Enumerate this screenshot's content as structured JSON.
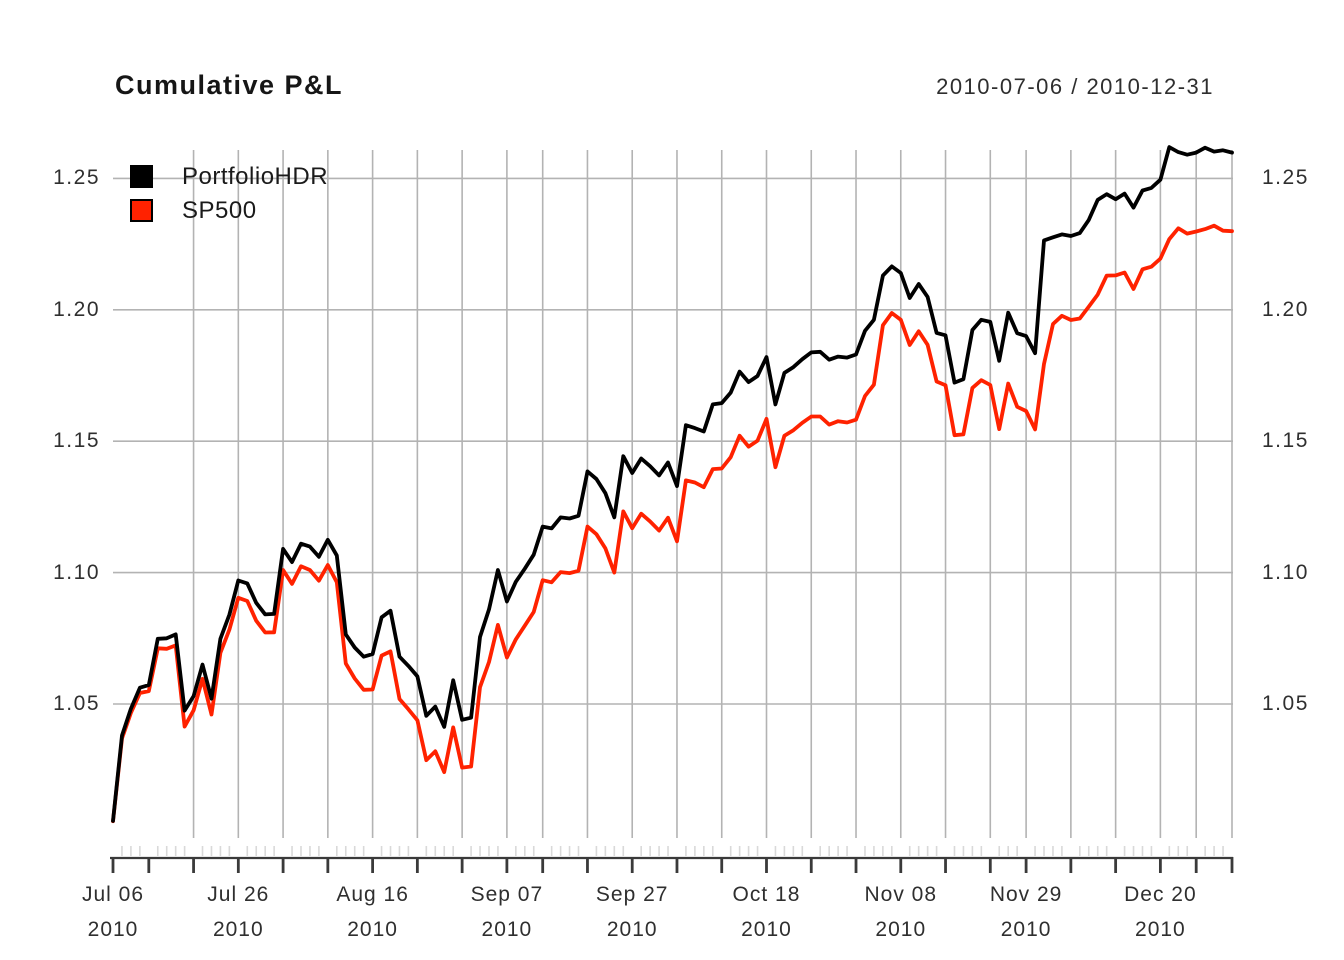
{
  "header": {
    "title": "Cumulative P&L",
    "date_range": "2010-07-06 / 2010-12-31"
  },
  "legend": {
    "items": [
      {
        "label": "PortfolioHDR",
        "color": "#000000"
      },
      {
        "label": "SP500",
        "color": "#ff2200"
      }
    ]
  },
  "axes": {
    "y_ticks": [
      {
        "value": 1.05,
        "label": "1.05"
      },
      {
        "value": 1.1,
        "label": "1.10"
      },
      {
        "value": 1.15,
        "label": "1.15"
      },
      {
        "value": 1.2,
        "label": "1.20"
      },
      {
        "value": 1.25,
        "label": "1.25"
      }
    ],
    "x_ticks": [
      {
        "index": 0,
        "line1": "Jul 06",
        "line2": "2010"
      },
      {
        "index": 14,
        "line1": "Jul 26",
        "line2": "2010"
      },
      {
        "index": 29,
        "line1": "Aug 16",
        "line2": "2010"
      },
      {
        "index": 44,
        "line1": "Sep 07",
        "line2": "2010"
      },
      {
        "index": 58,
        "line1": "Sep 27",
        "line2": "2010"
      },
      {
        "index": 73,
        "line1": "Oct 18",
        "line2": "2010"
      },
      {
        "index": 88,
        "line1": "Nov 08",
        "line2": "2010"
      },
      {
        "index": 102,
        "line1": "Nov 29",
        "line2": "2010"
      },
      {
        "index": 117,
        "line1": "Dec 20",
        "line2": "2010"
      }
    ]
  },
  "chart_data": {
    "type": "line",
    "title": "Cumulative P&L",
    "x_range_label": "2010-07-06 / 2010-12-31",
    "ylim": [
      1.0,
      1.265
    ],
    "grid": true,
    "legend_position": "top-left",
    "colors": {
      "grid": "#b3b3b3",
      "axis": "#3a3a3a",
      "minor_tick": "#d9d9d9"
    },
    "week_start_indices": [
      9,
      14,
      19,
      24,
      29,
      34,
      39,
      44,
      48,
      53,
      58,
      63,
      68,
      73,
      78,
      83,
      88,
      93,
      98,
      102,
      107,
      112,
      117,
      121,
      125
    ],
    "major_tick_indices": [
      0,
      4,
      9,
      14,
      19,
      24,
      29,
      34,
      39,
      44,
      48,
      53,
      58,
      63,
      68,
      73,
      78,
      83,
      88,
      93,
      98,
      102,
      107,
      112,
      117,
      121,
      125
    ],
    "dates": [
      "2010-07-06",
      "2010-07-07",
      "2010-07-08",
      "2010-07-09",
      "2010-07-12",
      "2010-07-13",
      "2010-07-14",
      "2010-07-15",
      "2010-07-16",
      "2010-07-19",
      "2010-07-20",
      "2010-07-21",
      "2010-07-22",
      "2010-07-23",
      "2010-07-26",
      "2010-07-27",
      "2010-07-28",
      "2010-07-29",
      "2010-07-30",
      "2010-08-02",
      "2010-08-03",
      "2010-08-04",
      "2010-08-05",
      "2010-08-06",
      "2010-08-09",
      "2010-08-10",
      "2010-08-11",
      "2010-08-12",
      "2010-08-13",
      "2010-08-16",
      "2010-08-17",
      "2010-08-18",
      "2010-08-19",
      "2010-08-20",
      "2010-08-23",
      "2010-08-24",
      "2010-08-25",
      "2010-08-26",
      "2010-08-27",
      "2010-08-30",
      "2010-08-31",
      "2010-09-01",
      "2010-09-02",
      "2010-09-03",
      "2010-09-07",
      "2010-09-08",
      "2010-09-09",
      "2010-09-10",
      "2010-09-13",
      "2010-09-14",
      "2010-09-15",
      "2010-09-16",
      "2010-09-17",
      "2010-09-20",
      "2010-09-21",
      "2010-09-22",
      "2010-09-23",
      "2010-09-24",
      "2010-09-27",
      "2010-09-28",
      "2010-09-29",
      "2010-09-30",
      "2010-10-01",
      "2010-10-04",
      "2010-10-05",
      "2010-10-06",
      "2010-10-07",
      "2010-10-08",
      "2010-10-11",
      "2010-10-12",
      "2010-10-13",
      "2010-10-14",
      "2010-10-15",
      "2010-10-18",
      "2010-10-19",
      "2010-10-20",
      "2010-10-21",
      "2010-10-22",
      "2010-10-25",
      "2010-10-26",
      "2010-10-27",
      "2010-10-28",
      "2010-10-29",
      "2010-11-01",
      "2010-11-02",
      "2010-11-03",
      "2010-11-04",
      "2010-11-05",
      "2010-11-08",
      "2010-11-09",
      "2010-11-10",
      "2010-11-11",
      "2010-11-12",
      "2010-11-15",
      "2010-11-16",
      "2010-11-17",
      "2010-11-18",
      "2010-11-19",
      "2010-11-22",
      "2010-11-23",
      "2010-11-24",
      "2010-11-26",
      "2010-11-29",
      "2010-11-30",
      "2010-12-01",
      "2010-12-02",
      "2010-12-03",
      "2010-12-06",
      "2010-12-07",
      "2010-12-08",
      "2010-12-09",
      "2010-12-10",
      "2010-12-13",
      "2010-12-14",
      "2010-12-15",
      "2010-12-16",
      "2010-12-17",
      "2010-12-20",
      "2010-12-21",
      "2010-12-22",
      "2010-12-23",
      "2010-12-27",
      "2010-12-28",
      "2010-12-29",
      "2010-12-30",
      "2010-12-31"
    ],
    "series": [
      {
        "name": "PortfolioHDR",
        "color": "#000000",
        "values": [
          1.0055,
          1.038,
          1.0482,
          1.0562,
          1.0572,
          1.0748,
          1.075,
          1.0765,
          1.0475,
          1.053,
          1.065,
          1.052,
          1.0748,
          1.084,
          1.097,
          1.0959,
          1.0885,
          1.0841,
          1.0843,
          1.109,
          1.104,
          1.111,
          1.1099,
          1.106,
          1.1125,
          1.1065,
          1.0765,
          1.0715,
          1.068,
          1.069,
          1.083,
          1.0855,
          1.068,
          1.0645,
          1.0605,
          1.0455,
          1.049,
          1.0413,
          1.059,
          1.044,
          1.0448,
          1.0755,
          1.086,
          1.101,
          1.089,
          1.0965,
          1.1015,
          1.1068,
          1.1175,
          1.1168,
          1.121,
          1.1206,
          1.1216,
          1.1385,
          1.1356,
          1.1302,
          1.121,
          1.1443,
          1.1379,
          1.1434,
          1.1405,
          1.137,
          1.1419,
          1.1329,
          1.1561,
          1.155,
          1.1537,
          1.164,
          1.1645,
          1.1685,
          1.1765,
          1.1725,
          1.1748,
          1.182,
          1.164,
          1.176,
          1.1782,
          1.1812,
          1.1838,
          1.184,
          1.181,
          1.1822,
          1.1818,
          1.183,
          1.192,
          1.1962,
          1.213,
          1.2165,
          1.214,
          1.2045,
          1.2098,
          1.2049,
          1.1912,
          1.1903,
          1.1723,
          1.1736,
          1.1923,
          1.1962,
          1.1954,
          1.1806,
          1.1989,
          1.1911,
          1.19,
          1.1835,
          1.2264,
          1.2276,
          1.2287,
          1.2281,
          1.2292,
          1.2342,
          1.2418,
          1.244,
          1.2421,
          1.2442,
          1.2389,
          1.2454,
          1.2464,
          1.2495,
          1.2619,
          1.26,
          1.259,
          1.2598,
          1.2617,
          1.2602,
          1.2607,
          1.2598
        ]
      },
      {
        "name": "SP500",
        "color": "#ff2200",
        "values": [
          1.0054,
          1.0369,
          1.0466,
          1.0542,
          1.0549,
          1.0712,
          1.071,
          1.0723,
          1.0414,
          1.0476,
          1.0596,
          1.046,
          1.0695,
          1.0783,
          1.0904,
          1.0892,
          1.0817,
          1.0772,
          1.0773,
          1.101,
          1.0957,
          1.1024,
          1.101,
          1.0969,
          1.1029,
          1.0963,
          1.0654,
          1.0597,
          1.0554,
          1.0555,
          1.0684,
          1.07,
          1.0519,
          1.048,
          1.0438,
          1.0286,
          1.032,
          1.0241,
          1.0411,
          1.0258,
          1.0262,
          1.0564,
          1.066,
          1.0801,
          1.0677,
          1.0746,
          1.0798,
          1.085,
          1.0971,
          1.0963,
          1.1002,
          1.0998,
          1.1007,
          1.1175,
          1.1146,
          1.1092,
          1.1,
          1.1233,
          1.1169,
          1.1224,
          1.1195,
          1.116,
          1.1209,
          1.1119,
          1.1351,
          1.1343,
          1.1325,
          1.1394,
          1.1396,
          1.1439,
          1.1521,
          1.1479,
          1.1502,
          1.1585,
          1.1401,
          1.1521,
          1.1542,
          1.157,
          1.1594,
          1.1594,
          1.1563,
          1.1576,
          1.1571,
          1.1582,
          1.1672,
          1.1715,
          1.1941,
          1.1988,
          1.1962,
          1.1866,
          1.1918,
          1.1867,
          1.1727,
          1.1713,
          1.1523,
          1.1526,
          1.1703,
          1.1732,
          1.1714,
          1.1546,
          1.1719,
          1.1631,
          1.1615,
          1.1545,
          1.1794,
          1.1946,
          1.1977,
          1.1961,
          1.1967,
          1.2012,
          1.2058,
          1.213,
          1.2131,
          1.2142,
          1.2079,
          1.2154,
          1.2164,
          1.2195,
          1.2269,
          1.231,
          1.229,
          1.2298,
          1.2307,
          1.232,
          1.2301,
          1.2299
        ]
      }
    ]
  }
}
